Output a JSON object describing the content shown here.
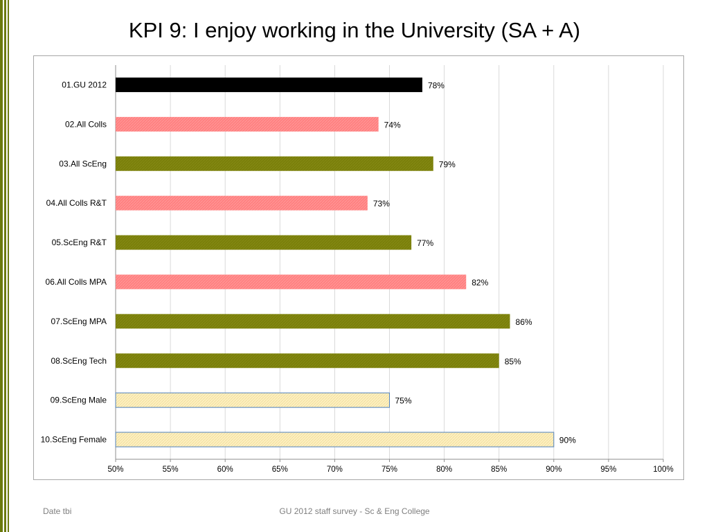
{
  "slide": {
    "title": "KPI 9: I enjoy working in the University (SA + A)",
    "footer_left": "Date tbi",
    "footer_center": "GU 2012 staff survey -  Sc & Eng College"
  },
  "colors": {
    "accent_band": "#6b7a0e",
    "black": "#000000",
    "pink": "#ff8080",
    "olive": "#7a7f0a",
    "cream_fill": "#fdf0c0",
    "cream_border": "#4f81bd",
    "grid": "#d9d9d9"
  },
  "chart_data": {
    "type": "bar",
    "orientation": "horizontal",
    "categories": [
      "01.GU 2012",
      "02.All Colls",
      "03.All ScEng",
      "04.All Colls R&T",
      "05.ScEng R&T",
      "06.All Colls MPA",
      "07.ScEng MPA",
      "08.ScEng Tech",
      "09.ScEng Male",
      "10.ScEng Female"
    ],
    "values": [
      78,
      74,
      79,
      73,
      77,
      82,
      86,
      85,
      75,
      90
    ],
    "data_labels": [
      "78%",
      "74%",
      "79%",
      "73%",
      "77%",
      "82%",
      "86%",
      "85%",
      "75%",
      "90%"
    ],
    "bar_styles": [
      "black",
      "pink",
      "olive",
      "pink",
      "olive",
      "pink",
      "olive",
      "olive",
      "cream",
      "cream"
    ],
    "xlim": [
      50,
      100
    ],
    "x_ticks": [
      50,
      55,
      60,
      65,
      70,
      75,
      80,
      85,
      90,
      95,
      100
    ],
    "x_tick_labels": [
      "50%",
      "55%",
      "60%",
      "65%",
      "70%",
      "75%",
      "80%",
      "85%",
      "90%",
      "95%",
      "100%"
    ],
    "grid": true,
    "legend": "none"
  }
}
